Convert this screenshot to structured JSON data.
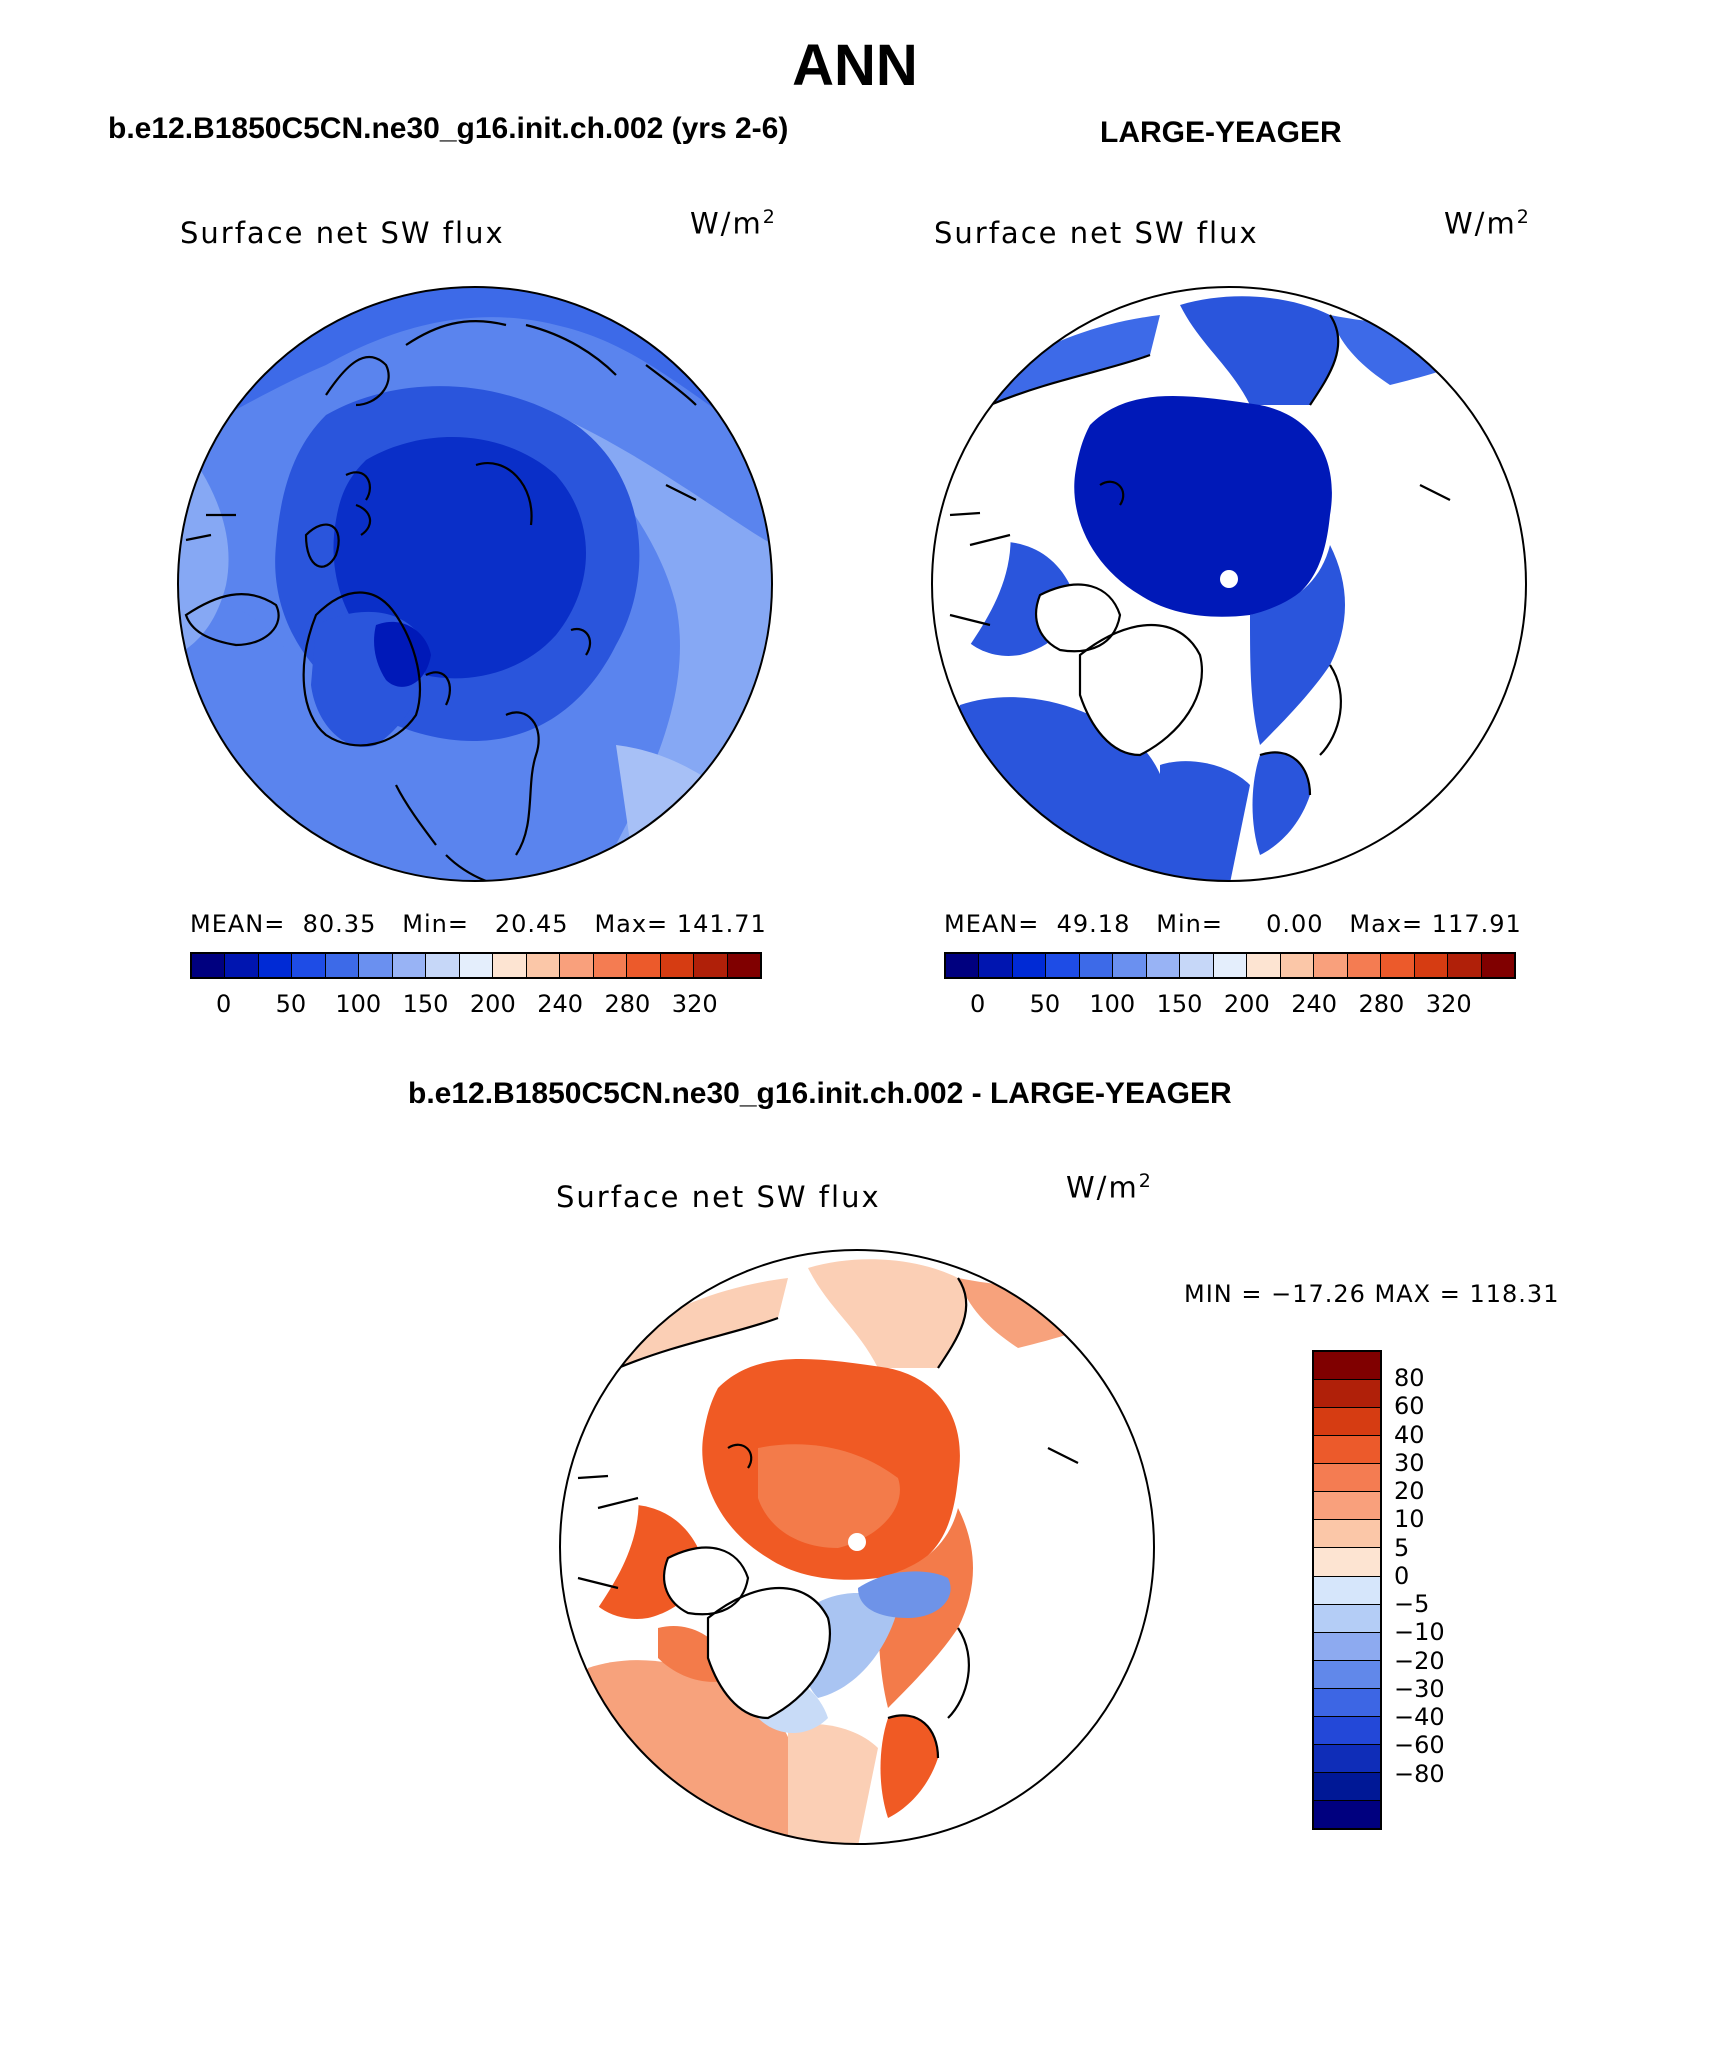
{
  "title": "ANN",
  "panels": {
    "left": {
      "case": "b.e12.B1850C5CN.ne30_g16.init.ch.002 (yrs 2-6)",
      "variable": "Surface net SW flux",
      "unit_base": "W/m",
      "unit_exp": "2",
      "mean_label": "MEAN=",
      "mean_value": "80.35",
      "min_label": "Min=",
      "min_value": "20.45",
      "max_label": "Max=",
      "max_value": "141.71"
    },
    "right": {
      "case": "LARGE-YEAGER",
      "variable": "Surface net SW flux",
      "unit_base": "W/m",
      "unit_exp": "2",
      "mean_label": "MEAN=",
      "mean_value": "49.18",
      "min_label": "Min=",
      "min_value": "0.00",
      "max_label": "Max=",
      "max_value": "117.91"
    },
    "diff": {
      "case": "b.e12.B1850C5CN.ne30_g16.init.ch.002 - LARGE-YEAGER",
      "variable": "Surface net SW flux",
      "unit_base": "W/m",
      "unit_exp": "2",
      "minmax": "MIN = −17.26 MAX = 118.31"
    }
  },
  "colorbar_abs": {
    "colors": [
      "#00007f",
      "#0015b0",
      "#002ad5",
      "#1e4ce6",
      "#3d6ae8",
      "#6a90f0",
      "#98b3f5",
      "#c6d7f8",
      "#e4eefc",
      "#fde4d2",
      "#fbc7a8",
      "#f9a07c",
      "#f47c52",
      "#ec5a2b",
      "#d63c12",
      "#b02009",
      "#800000"
    ],
    "ticks": [
      "0",
      "50",
      "100",
      "150",
      "200",
      "240",
      "280",
      "320"
    ]
  },
  "colorbar_diff": {
    "colors": [
      "#800000",
      "#b02009",
      "#d63c12",
      "#ec5a2b",
      "#f47c52",
      "#f9a07c",
      "#fbc7a8",
      "#fde4d2",
      "#d6e6fb",
      "#b4cdf6",
      "#8daaf0",
      "#6188ea",
      "#3d66e4",
      "#2348d8",
      "#0f2db8",
      "#001896",
      "#00007f"
    ],
    "ticks": [
      "80",
      "60",
      "40",
      "30",
      "20",
      "10",
      "5",
      "0",
      "−5",
      "−10",
      "−20",
      "−30",
      "−40",
      "−60",
      "−80"
    ]
  },
  "map_colors": {
    "ocean_low": "#0019b8",
    "deep": "#0a2fc8",
    "mid": "#2a55dc",
    "light": "#5a84ee",
    "pale": "#86a8f4",
    "palest": "#a7c0f6",
    "diff_strong": "#f05a24",
    "diff_med": "#f37b4a",
    "diff_light": "#f7a27c",
    "diff_pale": "#fbcfb5",
    "diff_neg": "#a9c4f2",
    "diff_neg_strong": "#6e93e8"
  }
}
